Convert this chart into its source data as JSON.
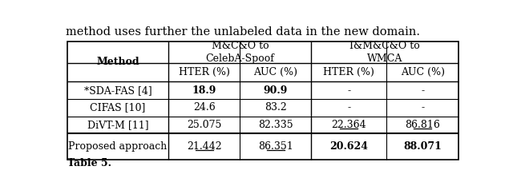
{
  "title_text": "method uses further the unlabeled data in the new domain.",
  "col_group1": "M&C&O to\nCelebA-Spoof",
  "col_group2": "I&M&C&O to\nWMCA",
  "rows": [
    {
      "method": "*SDA-FAS [4]",
      "h1": "18.9",
      "a1": "90.9",
      "h2": "-",
      "a2": "-",
      "h1_bold": true,
      "a1_bold": true,
      "h2_bold": false,
      "a2_bold": false,
      "h1_ul": false,
      "a1_ul": false,
      "h2_ul": false,
      "a2_ul": false
    },
    {
      "method": "CIFAS [10]",
      "h1": "24.6",
      "a1": "83.2",
      "h2": "-",
      "a2": "-",
      "h1_bold": false,
      "a1_bold": false,
      "h2_bold": false,
      "a2_bold": false,
      "h1_ul": false,
      "a1_ul": false,
      "h2_ul": false,
      "a2_ul": false
    },
    {
      "method": "DiVT-M [11]",
      "h1": "25.075",
      "a1": "82.335",
      "h2": "22.364",
      "a2": "86.816",
      "h1_bold": false,
      "a1_bold": false,
      "h2_bold": false,
      "a2_bold": false,
      "h1_ul": false,
      "a1_ul": false,
      "h2_ul": true,
      "a2_ul": true
    },
    {
      "method": "Proposed approach",
      "h1": "21.442",
      "a1": "86.351",
      "h2": "20.624",
      "a2": "88.071",
      "h1_bold": false,
      "a1_bold": false,
      "h2_bold": true,
      "a2_bold": true,
      "h1_ul": true,
      "a1_ul": true,
      "h2_ul": false,
      "a2_ul": false
    }
  ],
  "bg_color": "#ffffff",
  "text_color": "#000000",
  "font_size": 9.0,
  "caption": "Table 5."
}
